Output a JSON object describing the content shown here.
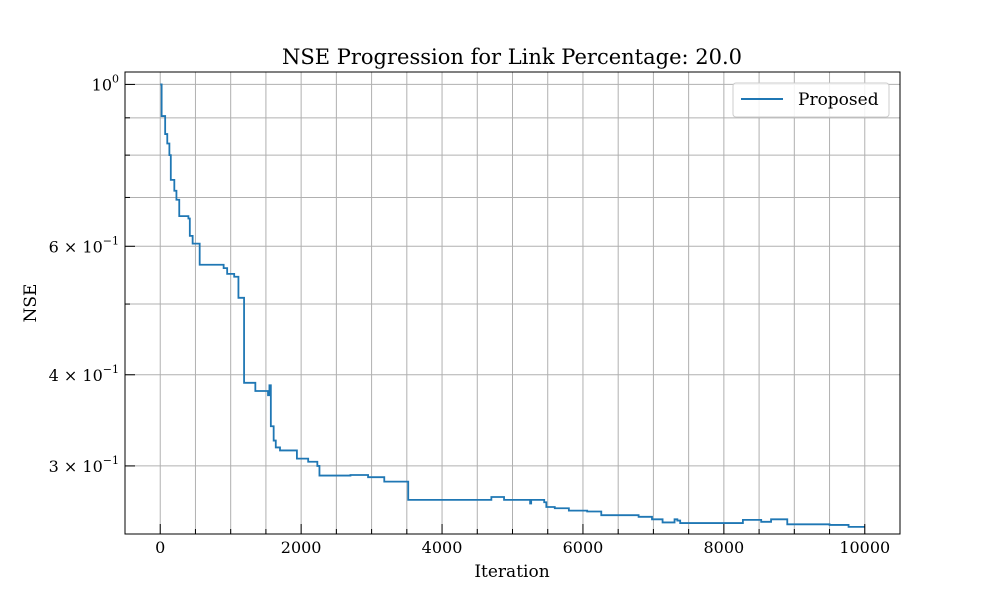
{
  "chart_data": {
    "type": "line",
    "title": "NSE Progression for Link Percentage: 20.0",
    "xlabel": "Iteration",
    "ylabel": "NSE",
    "y_scale": "log",
    "xlim": [
      -500,
      10500
    ],
    "ylim": [
      0.242,
      1.04
    ],
    "grid": true,
    "legend_position": "top-right",
    "xticks": [
      {
        "value": 0,
        "label": "0"
      },
      {
        "value": 2000,
        "label": "2000"
      },
      {
        "value": 4000,
        "label": "4000"
      },
      {
        "value": 6000,
        "label": "6000"
      },
      {
        "value": 8000,
        "label": "8000"
      },
      {
        "value": 10000,
        "label": "10000"
      }
    ],
    "xminor": [
      500,
      1000,
      1500,
      2500,
      3000,
      3500,
      4500,
      5000,
      5500,
      6500,
      7000,
      7500,
      8500,
      9000,
      9500
    ],
    "yticks": [
      {
        "value": 1.0,
        "mantissa": "",
        "base": "10",
        "exp": "0"
      },
      {
        "value": 0.6,
        "mantissa": "6 × ",
        "base": "10",
        "exp": "−1"
      },
      {
        "value": 0.4,
        "mantissa": "4 × ",
        "base": "10",
        "exp": "−1"
      },
      {
        "value": 0.3,
        "mantissa": "3 × ",
        "base": "10",
        "exp": "−1"
      }
    ],
    "yminor": [
      0.9,
      0.8,
      0.7,
      0.5
    ],
    "series": [
      {
        "name": "Proposed",
        "color": "#1f77b4",
        "points": [
          [
            0,
            1.0
          ],
          [
            20,
            1.0
          ],
          [
            20,
            0.905
          ],
          [
            70,
            0.905
          ],
          [
            70,
            0.855
          ],
          [
            100,
            0.855
          ],
          [
            100,
            0.83
          ],
          [
            130,
            0.83
          ],
          [
            130,
            0.8
          ],
          [
            150,
            0.8
          ],
          [
            150,
            0.74
          ],
          [
            200,
            0.74
          ],
          [
            200,
            0.715
          ],
          [
            230,
            0.715
          ],
          [
            230,
            0.695
          ],
          [
            270,
            0.695
          ],
          [
            270,
            0.66
          ],
          [
            400,
            0.66
          ],
          [
            400,
            0.655
          ],
          [
            420,
            0.655
          ],
          [
            420,
            0.62
          ],
          [
            460,
            0.62
          ],
          [
            460,
            0.605
          ],
          [
            560,
            0.605
          ],
          [
            560,
            0.566
          ],
          [
            900,
            0.566
          ],
          [
            900,
            0.56
          ],
          [
            950,
            0.56
          ],
          [
            950,
            0.55
          ],
          [
            1050,
            0.55
          ],
          [
            1050,
            0.545
          ],
          [
            1110,
            0.545
          ],
          [
            1110,
            0.51
          ],
          [
            1190,
            0.51
          ],
          [
            1190,
            0.39
          ],
          [
            1350,
            0.39
          ],
          [
            1350,
            0.38
          ],
          [
            1530,
            0.38
          ],
          [
            1530,
            0.375
          ],
          [
            1550,
            0.375
          ],
          [
            1550,
            0.387
          ],
          [
            1570,
            0.387
          ],
          [
            1570,
            0.34
          ],
          [
            1610,
            0.34
          ],
          [
            1610,
            0.325
          ],
          [
            1640,
            0.325
          ],
          [
            1640,
            0.318
          ],
          [
            1700,
            0.318
          ],
          [
            1700,
            0.315
          ],
          [
            1940,
            0.315
          ],
          [
            1940,
            0.307
          ],
          [
            2100,
            0.307
          ],
          [
            2100,
            0.304
          ],
          [
            2230,
            0.304
          ],
          [
            2230,
            0.3
          ],
          [
            2260,
            0.3
          ],
          [
            2260,
            0.291
          ],
          [
            2700,
            0.291
          ],
          [
            2700,
            0.2915
          ],
          [
            2950,
            0.2915
          ],
          [
            2950,
            0.2895
          ],
          [
            3180,
            0.2895
          ],
          [
            3180,
            0.2855
          ],
          [
            3520,
            0.2855
          ],
          [
            3520,
            0.2695
          ],
          [
            4700,
            0.2695
          ],
          [
            4700,
            0.272
          ],
          [
            4880,
            0.272
          ],
          [
            4880,
            0.2695
          ],
          [
            5250,
            0.2695
          ],
          [
            5250,
            0.2665
          ],
          [
            5265,
            0.2665
          ],
          [
            5265,
            0.2695
          ],
          [
            5450,
            0.2695
          ],
          [
            5450,
            0.2675
          ],
          [
            5480,
            0.2675
          ],
          [
            5480,
            0.2635
          ],
          [
            5600,
            0.2635
          ],
          [
            5600,
            0.2625
          ],
          [
            5800,
            0.2625
          ],
          [
            5800,
            0.2605
          ],
          [
            6060,
            0.2605
          ],
          [
            6060,
            0.2598
          ],
          [
            6260,
            0.2598
          ],
          [
            6260,
            0.2568
          ],
          [
            6790,
            0.2568
          ],
          [
            6790,
            0.2555
          ],
          [
            6980,
            0.2555
          ],
          [
            6980,
            0.2535
          ],
          [
            7130,
            0.2535
          ],
          [
            7130,
            0.251
          ],
          [
            7300,
            0.251
          ],
          [
            7300,
            0.2535
          ],
          [
            7340,
            0.2535
          ],
          [
            7340,
            0.2525
          ],
          [
            7380,
            0.2525
          ],
          [
            7380,
            0.2505
          ],
          [
            8270,
            0.2505
          ],
          [
            8270,
            0.253
          ],
          [
            8530,
            0.253
          ],
          [
            8530,
            0.2515
          ],
          [
            8670,
            0.2515
          ],
          [
            8670,
            0.2535
          ],
          [
            8900,
            0.2535
          ],
          [
            8900,
            0.2495
          ],
          [
            9500,
            0.2495
          ],
          [
            9500,
            0.249
          ],
          [
            9770,
            0.249
          ],
          [
            9770,
            0.2475
          ],
          [
            10000,
            0.2475
          ]
        ]
      }
    ]
  }
}
